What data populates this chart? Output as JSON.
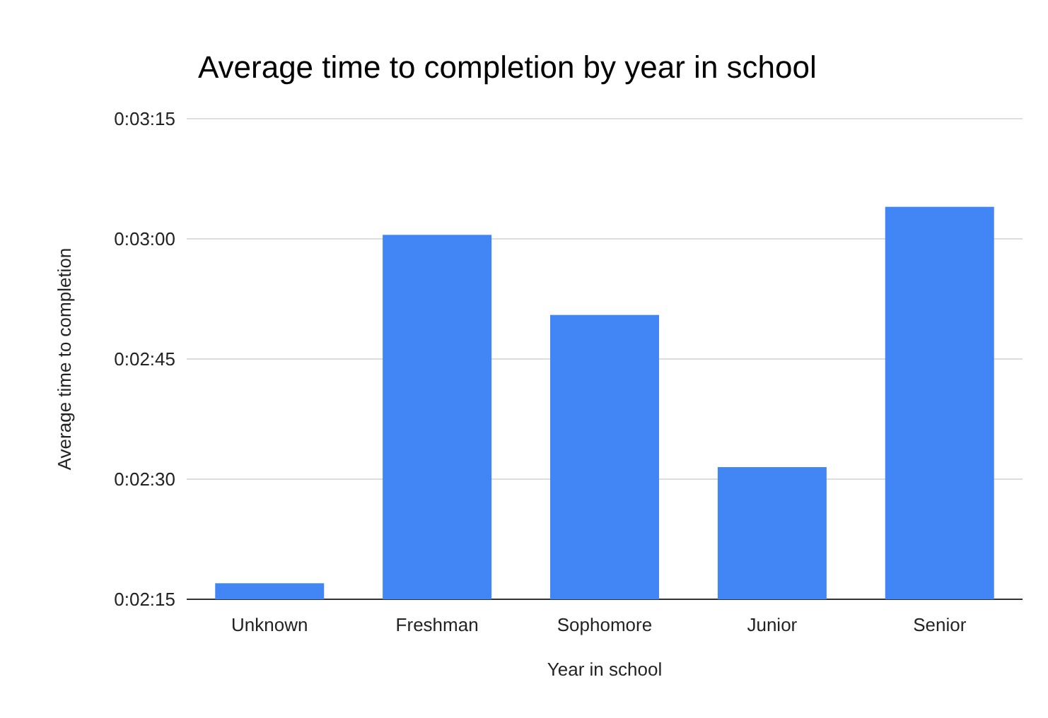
{
  "chart_data": {
    "type": "bar",
    "title": "Average time to completion by year in school",
    "xlabel": "Year in school",
    "ylabel": "Average time to completion",
    "categories": [
      "Unknown",
      "Freshman",
      "Sophomore",
      "Junior",
      "Senior"
    ],
    "values": [
      137,
      180.5,
      170.5,
      151.5,
      184
    ],
    "color": "#4285f4",
    "ylim": [
      135,
      195
    ],
    "yticks": [
      {
        "value": 135,
        "label": "0:02:15"
      },
      {
        "value": 150,
        "label": "0:02:30"
      },
      {
        "value": 165,
        "label": "0:02:45"
      },
      {
        "value": 180,
        "label": "0:03:00"
      },
      {
        "value": 195,
        "label": "0:03:15"
      }
    ],
    "grid": true
  }
}
